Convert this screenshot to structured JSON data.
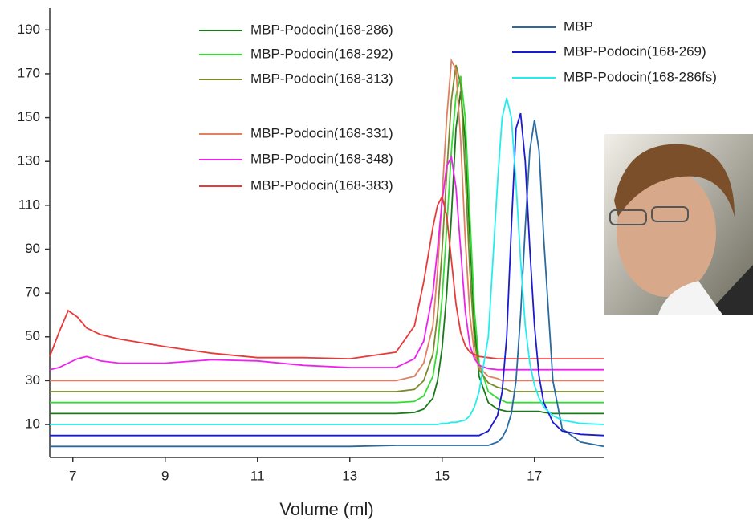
{
  "chart_data": {
    "type": "line",
    "xlabel": "Volume (ml)",
    "x": [
      6.5,
      6.7,
      6.9,
      7.1,
      7.3,
      7.6,
      8,
      9,
      10,
      11,
      12,
      13,
      14,
      14.4,
      14.6,
      14.8,
      14.9,
      15,
      15.1,
      15.2,
      15.3,
      15.4,
      15.5,
      15.6,
      15.7,
      15.8,
      16,
      16.2,
      16.3,
      16.4,
      16.5,
      16.6,
      16.7,
      16.8,
      16.9,
      17,
      17.1,
      17.2,
      17.4,
      17.6,
      18,
      18.5
    ],
    "xlim": [
      6.5,
      18.5
    ],
    "xticks": [
      7,
      9,
      11,
      13,
      15,
      17
    ],
    "ylim": [
      -5,
      200
    ],
    "yticks": [
      10,
      30,
      50,
      70,
      90,
      110,
      130,
      150,
      170,
      190
    ],
    "series": [
      {
        "name": "MBP-Podocin(168-286)",
        "color": "#1a7a1a",
        "values": [
          15,
          15,
          15,
          15,
          15,
          15,
          15,
          15,
          15,
          15,
          15,
          15,
          15,
          15.5,
          17,
          22,
          30,
          45,
          70,
          105,
          145,
          162,
          140,
          95,
          55,
          32,
          20,
          17,
          16.5,
          16,
          16,
          16,
          16,
          16,
          16,
          16,
          16,
          15.5,
          15,
          15,
          15,
          15
        ]
      },
      {
        "name": "MBP-Podocin(168-292)",
        "color": "#33dd33",
        "values": [
          20,
          20,
          20,
          20,
          20,
          20,
          20,
          20,
          20,
          20,
          20,
          20,
          20,
          20.5,
          23,
          32,
          45,
          68,
          100,
          135,
          160,
          169,
          150,
          105,
          62,
          38,
          25,
          22,
          21,
          20,
          20,
          20,
          20,
          20,
          20,
          20,
          20,
          20,
          20,
          20,
          20,
          20
        ]
      },
      {
        "name": "MBP-Podocin(168-313)",
        "color": "#7a8a2a",
        "values": [
          25,
          25,
          25,
          25,
          25,
          25,
          25,
          25,
          25,
          25,
          25,
          25,
          25,
          26,
          30,
          42,
          60,
          90,
          125,
          158,
          174,
          165,
          125,
          80,
          48,
          35,
          29,
          27,
          26.5,
          26,
          25,
          25,
          25,
          25,
          25,
          25,
          25,
          25,
          25,
          25,
          25,
          25
        ]
      },
      {
        "name": "MBP-Podocin(168-331)",
        "color": "#e08060",
        "values": [
          30,
          30,
          30,
          30,
          30,
          30,
          30,
          30,
          30,
          30,
          30,
          30,
          30,
          32,
          38,
          55,
          80,
          115,
          150,
          176,
          172,
          140,
          95,
          60,
          42,
          36,
          32,
          31,
          30,
          30,
          30,
          30,
          30,
          30,
          30,
          30,
          30,
          30,
          30,
          30,
          30,
          30
        ]
      },
      {
        "name": "MBP-Podocin(168-348)",
        "color": "#ee22ee",
        "values": [
          35,
          36,
          38,
          40,
          41,
          39,
          38,
          38,
          39.5,
          39,
          37,
          36,
          36,
          40,
          48,
          70,
          90,
          112,
          128,
          132,
          118,
          90,
          62,
          46,
          40,
          37,
          35.5,
          35,
          35,
          35,
          35,
          35,
          35,
          35,
          35,
          35,
          35,
          35,
          35,
          35,
          35,
          35
        ]
      },
      {
        "name": "MBP-Podocin(168-383)",
        "color": "#e83a3a",
        "values": [
          41,
          52,
          62,
          59,
          54,
          51,
          49,
          45.5,
          42.5,
          40.5,
          40.5,
          40,
          43,
          55,
          75,
          100,
          110,
          114,
          105,
          85,
          65,
          52,
          46,
          43,
          42,
          41,
          40.5,
          40,
          40,
          40,
          40,
          40,
          40,
          40,
          40,
          40,
          40,
          40,
          40,
          40,
          40,
          40
        ]
      },
      {
        "name": "MBP",
        "color": "#2a6aa0",
        "values": [
          0,
          0,
          0,
          0,
          0,
          0,
          0,
          0,
          0,
          0,
          0,
          0,
          0.5,
          0.5,
          0.5,
          0.5,
          0.5,
          0.5,
          0.5,
          0.5,
          0.5,
          0.5,
          0.5,
          0.5,
          0.5,
          0.5,
          0.5,
          2,
          4,
          8,
          15,
          30,
          60,
          100,
          135,
          149,
          135,
          95,
          30,
          8,
          2,
          0
        ]
      },
      {
        "name": "MBP-Podocin(168-269)",
        "color": "#1a1ad0",
        "values": [
          5,
          5,
          5,
          5,
          5,
          5,
          5,
          5,
          5,
          5,
          5,
          5,
          5,
          5,
          5,
          5,
          5,
          5,
          5,
          5,
          5,
          5,
          5,
          5,
          5,
          5,
          7,
          14,
          25,
          50,
          100,
          145,
          152,
          130,
          90,
          55,
          32,
          20,
          11,
          7,
          5.5,
          5
        ]
      },
      {
        "name": "MBP-Podocin(168-286fs)",
        "color": "#22eeee",
        "values": [
          10,
          10,
          10,
          10,
          10,
          10,
          10,
          10,
          10,
          10,
          10,
          10,
          10,
          10,
          10,
          10,
          10,
          10.5,
          10.5,
          11,
          11,
          11.5,
          12,
          14,
          18,
          25,
          50,
          120,
          150,
          159,
          150,
          120,
          85,
          55,
          38,
          28,
          22,
          18,
          14,
          12,
          10.5,
          10
        ]
      }
    ]
  }
}
